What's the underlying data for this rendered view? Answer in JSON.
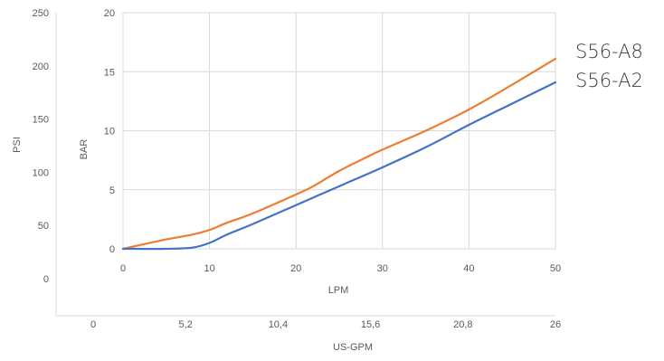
{
  "chart_data": {
    "type": "line",
    "xlabel": "LPM",
    "ylabel": "BAR",
    "secondary_xlabel": "US-GPM",
    "secondary_ylabel": "PSI",
    "x_ticks": [
      "0",
      "10",
      "20",
      "30",
      "40",
      "50"
    ],
    "y_ticks": [
      "0",
      "5",
      "10",
      "15",
      "20"
    ],
    "secondary_x_ticks": [
      "0",
      "5,2",
      "10,4",
      "15,6",
      "20,8",
      "26"
    ],
    "secondary_y_ticks": [
      "0",
      "50",
      "100",
      "150",
      "200",
      "250"
    ],
    "xlim": [
      0,
      50
    ],
    "ylim": [
      0,
      20
    ],
    "grid": true,
    "legend_placement": "right",
    "series": [
      {
        "name": "S56-A8",
        "color": "#ed7d31",
        "x": [
          0,
          5,
          8,
          10,
          12,
          15,
          20,
          22,
          25,
          28,
          30,
          35,
          40,
          45,
          50
        ],
        "y": [
          0,
          0.8,
          1.2,
          1.6,
          2.2,
          3.0,
          4.6,
          5.3,
          6.6,
          7.7,
          8.4,
          10.0,
          11.8,
          13.9,
          16.1
        ]
      },
      {
        "name": "S56-A2",
        "color": "#4472c4",
        "x": [
          0,
          5,
          8,
          10,
          12,
          15,
          20,
          25,
          30,
          35,
          40,
          45,
          50
        ],
        "y": [
          0,
          0,
          0.1,
          0.5,
          1.2,
          2.1,
          3.7,
          5.3,
          6.9,
          8.6,
          10.5,
          12.3,
          14.1
        ]
      }
    ]
  }
}
